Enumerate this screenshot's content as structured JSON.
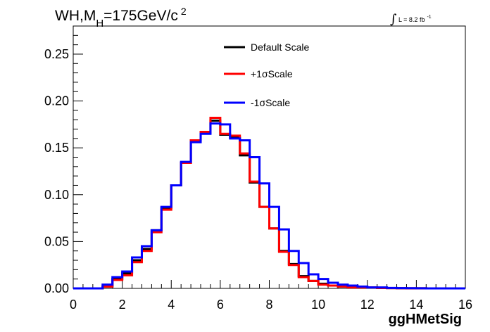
{
  "chart_data": {
    "type": "line",
    "title": {
      "main": "WH,M",
      "subscript": "H",
      "rest": "=175GeV/c",
      "superscript": "2"
    },
    "annotation": {
      "integral_symbol": "∫",
      "text": "L = 8.2 fb",
      "superscript": "-1"
    },
    "xlabel": "ggHMetSig",
    "ylabel": "",
    "xlim": [
      0,
      16
    ],
    "ylim": [
      0,
      0.28
    ],
    "x_ticks": [
      "0",
      "2",
      "4",
      "6",
      "8",
      "10",
      "12",
      "14",
      "16"
    ],
    "y_ticks": [
      "0.00",
      "0.05",
      "0.10",
      "0.15",
      "0.20",
      "0.25"
    ],
    "bin_edges": [
      0,
      0.4,
      0.8,
      1.2,
      1.6,
      2.0,
      2.4,
      2.8,
      3.2,
      3.6,
      4.0,
      4.4,
      4.8,
      5.2,
      5.6,
      6.0,
      6.4,
      6.8,
      7.2,
      7.6,
      8.0,
      8.4,
      8.8,
      9.2,
      9.6,
      10.0,
      10.4,
      10.8,
      11.2,
      11.6,
      12.0,
      12.4,
      12.8,
      13.2,
      13.6,
      14.0,
      14.4,
      14.8,
      15.2,
      15.6,
      16.0
    ],
    "series": [
      {
        "name": "Default Scale",
        "color": "#000000",
        "values": [
          0,
          0,
          0,
          0.002,
          0.01,
          0.016,
          0.03,
          0.042,
          0.062,
          0.086,
          0.11,
          0.134,
          0.158,
          0.166,
          0.179,
          0.164,
          0.161,
          0.142,
          0.113,
          0.087,
          0.064,
          0.04,
          0.026,
          0.013,
          0.008,
          0.005,
          0.003,
          0.002,
          0.001,
          0.001,
          0.001,
          0.0005,
          0.0003,
          0.0002,
          0.0001,
          0.0001,
          0,
          0,
          0,
          0
        ]
      },
      {
        "name": "+1σScale",
        "color": "#ff0000",
        "values": [
          0,
          0,
          0,
          0.002,
          0.009,
          0.014,
          0.028,
          0.04,
          0.06,
          0.084,
          0.11,
          0.134,
          0.158,
          0.167,
          0.182,
          0.165,
          0.163,
          0.144,
          0.114,
          0.087,
          0.064,
          0.039,
          0.025,
          0.012,
          0.008,
          0.004,
          0.003,
          0.002,
          0.001,
          0.001,
          0.001,
          0.0005,
          0.0003,
          0.0002,
          0.0001,
          0.0001,
          0,
          0,
          0,
          0
        ]
      },
      {
        "name": "-1σScale",
        "color": "#0000ff",
        "values": [
          0,
          0,
          0,
          0.004,
          0.012,
          0.018,
          0.033,
          0.045,
          0.062,
          0.087,
          0.11,
          0.135,
          0.156,
          0.165,
          0.176,
          0.175,
          0.16,
          0.158,
          0.14,
          0.112,
          0.087,
          0.063,
          0.04,
          0.027,
          0.015,
          0.01,
          0.006,
          0.004,
          0.003,
          0.002,
          0.001,
          0.001,
          0.0005,
          0.0003,
          0.0002,
          0.0001,
          0,
          0,
          0,
          0
        ]
      }
    ],
    "legend_position": "top-center",
    "grid": false
  }
}
